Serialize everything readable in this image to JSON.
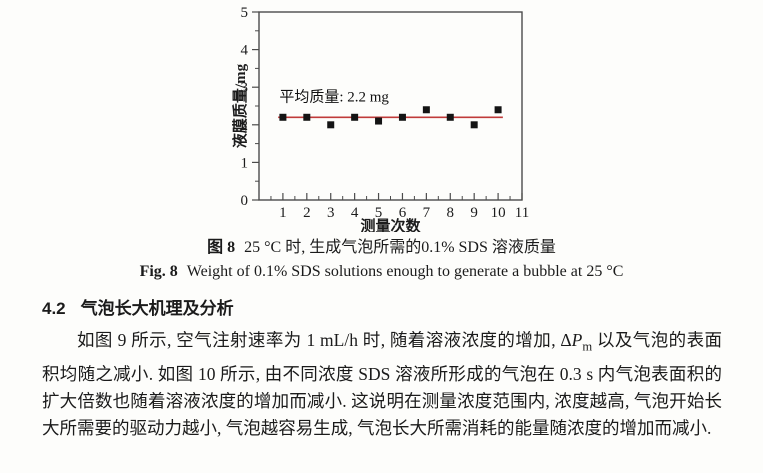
{
  "chart_data": {
    "type": "scatter",
    "title": "",
    "x": [
      1,
      2,
      3,
      4,
      5,
      6,
      7,
      8,
      9,
      10
    ],
    "y": [
      2.2,
      2.2,
      2.0,
      2.2,
      2.1,
      2.2,
      2.4,
      2.2,
      2.0,
      2.4
    ],
    "xlabel": "测量次数",
    "ylabel": "液膜质量/mg",
    "xlim": [
      0,
      11
    ],
    "ylim": [
      0,
      5
    ],
    "x_ticks": [
      1,
      2,
      3,
      4,
      5,
      6,
      7,
      8,
      9,
      10,
      11
    ],
    "y_ticks": [
      0,
      1,
      2,
      3,
      4,
      5
    ],
    "y_minor_step": 0.5,
    "x_minor_step": 0.5,
    "grid": false,
    "frame_color": "#4b4b4b",
    "marker": {
      "shape": "square",
      "color": "#141414",
      "size": 7
    },
    "mean_line": {
      "y": 2.2,
      "x_start": 0.8,
      "x_end": 10.2,
      "color": "#c03a3a",
      "label": "平均质量: 2.2 mg",
      "label_x": 0.85,
      "label_y": 2.62
    }
  },
  "captions": {
    "cn_label": "图 8",
    "cn_text": "25 °C 时, 生成气泡所需的0.1% SDS 溶液质量",
    "en_label": "Fig. 8",
    "en_text": "Weight of 0.1% SDS solutions enough to generate a bubble at 25 °C"
  },
  "section": {
    "number": "4.2",
    "title": "气泡长大机理及分析"
  },
  "paragraph": {
    "part1": "如图 9 所示, 空气注射速率为 1 mL/h 时, 随着溶液浓度的增加, ",
    "delta": "Δ",
    "p_italic": "P",
    "p_sub": "m",
    "part2": " 以及气泡的表面积均随之减小. 如图 10 所示, 由不同浓度 SDS 溶液所形成的气泡在 0.3 s 内气泡表面积的扩大倍数也随着溶液浓度的增加而减小. 这说明在测量浓度范围内, 浓度越高, 气泡开始长大所需要的驱动力越小, 气泡越容易生成, 气泡长大所需消耗的能量随浓度的增加而减小."
  }
}
